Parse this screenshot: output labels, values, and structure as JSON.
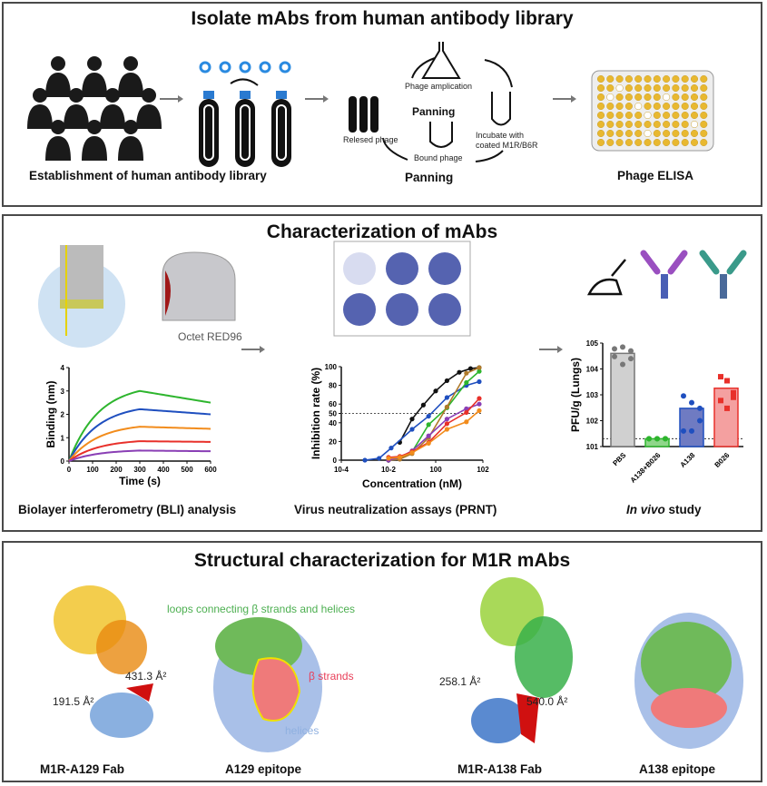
{
  "panel1": {
    "title": "Isolate mAbs from  human antibody library",
    "labels": {
      "library": "Establishment of  human antibody library",
      "panning": "Panning",
      "elisa": "Phage ELISA"
    },
    "cycle": {
      "center": "Panning",
      "amplification": "Phage amplication",
      "incubate_1": "Incubate with",
      "incubate_2": "coated M1R/B6R",
      "bound": "Bound phage",
      "released": "Relesed phage"
    }
  },
  "panel2": {
    "title": "Characterization of mAbs",
    "instrument": "Octet RED96",
    "labels": {
      "bli": "Biolayer interferometry (BLI) analysis",
      "prnt": "Virus neutralization assays (PRNT)",
      "invivo_italic": "In vivo",
      "invivo_rest": " study"
    }
  },
  "panel3": {
    "title": "Structural characterization for M1R mAbs",
    "labels": {
      "fab1": "M1R-A129 Fab",
      "epi1": "A129 epitope",
      "fab2": "M1R-A138 Fab",
      "epi2": "A138 epitope"
    },
    "annotations": {
      "a1": "431.3 Å²",
      "a2": "191.5 Å²",
      "a3": "258.1 Å²",
      "a4": "540.0 Å²",
      "loops": "loops connecting β strands and helices",
      "strands": "β strands",
      "helices": "helices"
    },
    "colors": {
      "loops": "#4caf50",
      "strands": "#e8405a",
      "helices": "#8fb0e0"
    }
  },
  "chart_data": [
    {
      "type": "line",
      "xlabel": "Time (s)",
      "ylabel": "Binding (nm)",
      "xlim": [
        0,
        600
      ],
      "ylim": [
        0,
        4
      ],
      "xticks": [
        0,
        100,
        200,
        300,
        400,
        500,
        600
      ],
      "yticks": [
        0,
        1,
        2,
        3,
        4
      ],
      "series": [
        {
          "color": "#2db52d",
          "peak": 3.0,
          "end": 2.5
        },
        {
          "color": "#1f4fbf",
          "peak": 2.22,
          "end": 2.0
        },
        {
          "color": "#f28c1c",
          "peak": 1.47,
          "end": 1.38
        },
        {
          "color": "#e8302a",
          "peak": 0.85,
          "end": 0.82
        },
        {
          "color": "#8a3fb5",
          "peak": 0.45,
          "end": 0.42
        }
      ]
    },
    {
      "type": "line",
      "scale": "log-x",
      "xlabel": "Concentration (nM)",
      "ylabel": "Inhibition rate (%)",
      "xlim": [
        0.0001,
        100
      ],
      "ylim": [
        0,
        100
      ],
      "xticks": [
        "10-4",
        "10-2",
        "100",
        "102"
      ],
      "yticks": [
        0,
        20,
        40,
        50,
        60,
        80,
        100
      ],
      "reference_line": 50,
      "series": [
        {
          "color": "#111111",
          "x": [
            0.03,
            0.1,
            0.3,
            1,
            3,
            10,
            30,
            70
          ],
          "y": [
            19,
            44,
            59,
            74,
            85,
            94,
            98,
            99
          ]
        },
        {
          "color": "#1f4fbf",
          "x": [
            0.001,
            0.004,
            0.013,
            0.1,
            0.5,
            3,
            20,
            70
          ],
          "y": [
            0,
            2,
            13,
            33,
            47,
            67,
            80,
            84
          ]
        },
        {
          "color": "#2db52d",
          "x": [
            0.01,
            0.03,
            0.1,
            0.5,
            3,
            20,
            70
          ],
          "y": [
            0,
            2,
            9,
            38,
            56,
            83,
            95
          ]
        },
        {
          "color": "#b07a2a",
          "x": [
            0.01,
            0.03,
            0.1,
            0.5,
            3,
            20,
            70
          ],
          "y": [
            0,
            1,
            7,
            24,
            57,
            93,
            99
          ]
        },
        {
          "color": "#8a3fb5",
          "x": [
            0.01,
            0.03,
            0.1,
            0.5,
            3,
            20,
            70
          ],
          "y": [
            0,
            3,
            10,
            26,
            44,
            55,
            60
          ]
        },
        {
          "color": "#e8302a",
          "x": [
            0.01,
            0.03,
            0.1,
            0.5,
            3,
            20,
            70
          ],
          "y": [
            3,
            4,
            9,
            19,
            39,
            51,
            66
          ]
        },
        {
          "color": "#f28c1c",
          "x": [
            0.01,
            0.03,
            0.1,
            0.5,
            3,
            20,
            70
          ],
          "y": [
            2,
            3,
            8,
            18,
            33,
            41,
            53
          ]
        }
      ]
    },
    {
      "type": "bar",
      "scale": "log-y",
      "ylabel": "PFU/g (Lungs)",
      "ylim": [
        10,
        100000
      ],
      "yticks": [
        "101",
        "102",
        "103",
        "104",
        "105"
      ],
      "detection_limit": 20,
      "categories": [
        "PBS",
        "A138+B026",
        "A138",
        "B026"
      ],
      "values": [
        40000,
        20,
        300,
        1800
      ],
      "colors": [
        "#d0d0d0",
        "#8fd68a",
        "#6f7bc2",
        "#f4a0a0"
      ],
      "edge_colors": [
        "#777777",
        "#2db52d",
        "#1f4fbf",
        "#e8302a"
      ],
      "points": [
        [
          60000,
          70000,
          50000,
          30000,
          15000,
          25000
        ],
        [
          20,
          20,
          20,
          20,
          20,
          20
        ],
        [
          900,
          500,
          300,
          40,
          40,
          100
        ],
        [
          5000,
          3500,
          1200,
          600,
          300,
          800
        ]
      ]
    }
  ]
}
